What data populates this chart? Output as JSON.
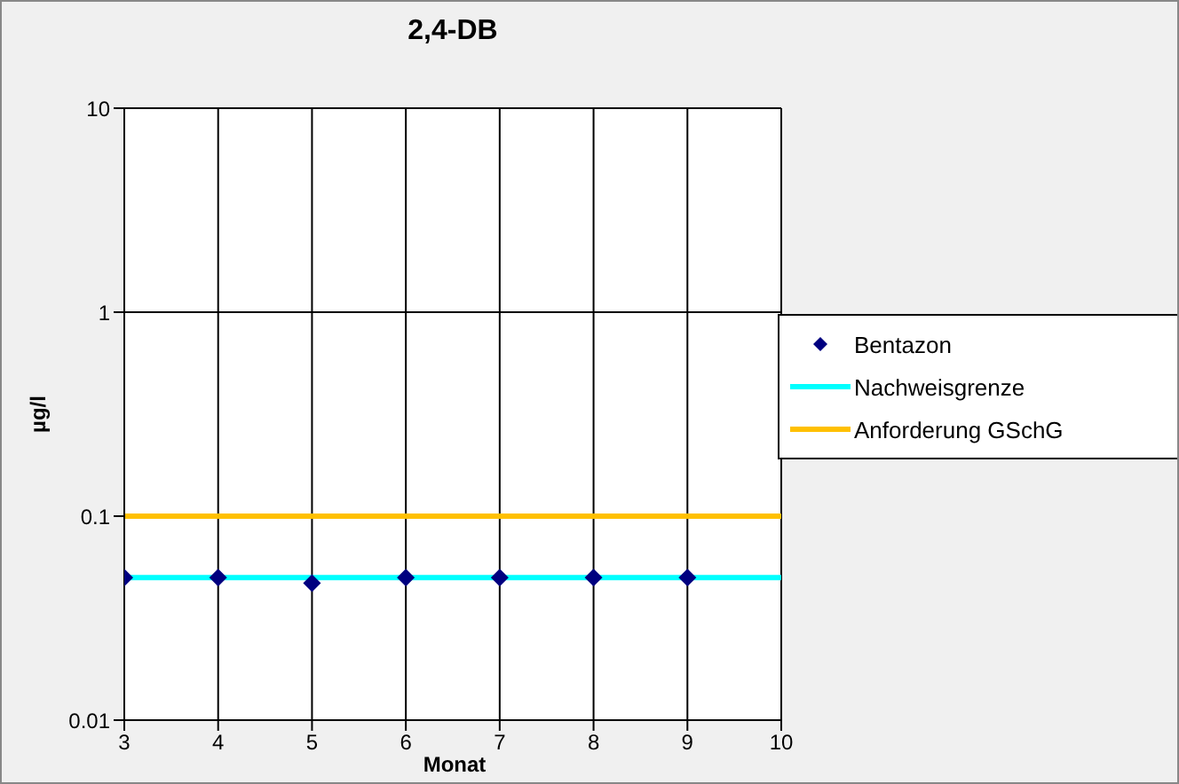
{
  "chart_data": {
    "type": "scatter",
    "title": "2,4-DB",
    "xlabel": "Monat",
    "ylabel": "µg/l",
    "log": "y",
    "xlim": [
      3,
      10
    ],
    "xticks": [
      3,
      4,
      5,
      6,
      7,
      8,
      9,
      10
    ],
    "ylim": [
      0.01,
      10
    ],
    "yticks": [
      0.01,
      0.1,
      1,
      10
    ],
    "grid": true,
    "legend": "right",
    "series": [
      {
        "name": "Bentazon",
        "marker": "diamond",
        "color": "#000080",
        "x": [
          3,
          4,
          5,
          6,
          7,
          8,
          9
        ],
        "values": [
          0.05,
          0.05,
          0.047,
          0.05,
          0.05,
          0.05,
          0.05
        ]
      },
      {
        "name": "Nachweisgrenze",
        "type": "line",
        "marker": "none",
        "color": "#00ffff",
        "x": [
          3,
          10
        ],
        "values": [
          0.05,
          0.05
        ]
      },
      {
        "name": "Anforderung GSchG",
        "type": "line",
        "marker": "none",
        "color": "#ffc000",
        "x": [
          3,
          10
        ],
        "values": [
          0.1,
          0.1
        ]
      }
    ]
  }
}
